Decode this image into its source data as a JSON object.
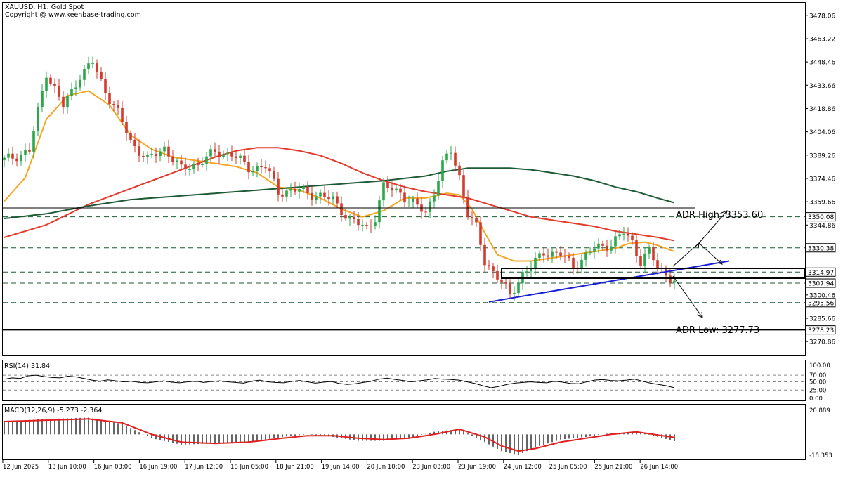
{
  "header": {
    "title": "XAUUSD, H1:  Gold Spot",
    "copyright": "Copyright @ www.keenbase-trading.com"
  },
  "colors": {
    "bull": "#2aa84a",
    "bear": "#d33a2c",
    "sma20": "#f5a623",
    "sma100": "#e23b2b",
    "sma200": "#1f5a37",
    "trendline": "#1a1fd6",
    "macd_line": "#e02020",
    "price_tag_bg": "#ffffff"
  },
  "chart_data": [
    {
      "type": "candlestick",
      "name": "price",
      "ylim": [
        3262,
        3486
      ],
      "y_ticks": [
        3478.06,
        3463.22,
        3448.46,
        3433.66,
        3418.86,
        3404.06,
        3389.26,
        3374.46,
        3359.66,
        3344.86,
        3330.06,
        3315.26,
        3300.46,
        3285.66,
        3270.86
      ],
      "y_tick_labels": [
        "3478.06",
        "3463.22",
        "3448.46",
        "3433.66",
        "3418.86",
        "3404.06",
        "3389.26",
        "3374.46",
        "3359.66",
        "3344.86",
        "3330.06",
        "3315.26",
        "3300.46",
        "3285.66",
        "3270.86"
      ],
      "x_tick_labels": [
        "12 Jun 2025",
        "13 Jun 10:00",
        "16 Jun 03:00",
        "16 Jun 19:00",
        "17 Jun 12:00",
        "18 Jun 05:00",
        "18 Jun 21:00",
        "19 Jun 14:00",
        "20 Jun 10:00",
        "23 Jun 03:00",
        "23 Jun 19:00",
        "24 Jun 12:00",
        "25 Jun 05:00",
        "25 Jun 21:00",
        "26 Jun 14:00"
      ],
      "bar_count": 160,
      "price_anchors": [
        [
          0,
          3386
        ],
        [
          6,
          3392
        ],
        [
          10,
          3442
        ],
        [
          14,
          3420
        ],
        [
          18,
          3440
        ],
        [
          21,
          3448
        ],
        [
          24,
          3430
        ],
        [
          27,
          3416
        ],
        [
          30,
          3398
        ],
        [
          34,
          3386
        ],
        [
          38,
          3394
        ],
        [
          42,
          3380
        ],
        [
          46,
          3384
        ],
        [
          50,
          3391
        ],
        [
          54,
          3390
        ],
        [
          58,
          3381
        ],
        [
          62,
          3382
        ],
        [
          65,
          3366
        ],
        [
          70,
          3367
        ],
        [
          74,
          3364
        ],
        [
          78,
          3361
        ],
        [
          82,
          3348
        ],
        [
          86,
          3343
        ],
        [
          88,
          3350
        ],
        [
          90,
          3369
        ],
        [
          94,
          3366
        ],
        [
          96,
          3360
        ],
        [
          100,
          3353
        ],
        [
          102,
          3366
        ],
        [
          104,
          3383
        ],
        [
          106,
          3392
        ],
        [
          108,
          3376
        ],
        [
          110,
          3352
        ],
        [
          112,
          3343
        ],
        [
          114,
          3322
        ],
        [
          117,
          3312
        ],
        [
          120,
          3300
        ],
        [
          123,
          3314
        ],
        [
          125,
          3318
        ],
        [
          128,
          3328
        ],
        [
          132,
          3326
        ],
        [
          135,
          3319
        ],
        [
          137,
          3323
        ],
        [
          140,
          3330
        ],
        [
          144,
          3333
        ],
        [
          147,
          3340
        ],
        [
          149,
          3334
        ],
        [
          151,
          3322
        ],
        [
          153,
          3328
        ],
        [
          155,
          3318
        ],
        [
          157,
          3314
        ],
        [
          159,
          3309
        ]
      ],
      "moving_averages": [
        {
          "period": 20,
          "color_key": "sma20",
          "points": [
            [
              0,
              3360
            ],
            [
              5,
              3375
            ],
            [
              10,
              3412
            ],
            [
              15,
              3427
            ],
            [
              20,
              3430
            ],
            [
              25,
              3421
            ],
            [
              30,
              3402
            ],
            [
              35,
              3393
            ],
            [
              40,
              3388
            ],
            [
              45,
              3386
            ],
            [
              50,
              3384
            ],
            [
              55,
              3382
            ],
            [
              60,
              3378
            ],
            [
              65,
              3369
            ],
            [
              70,
              3367
            ],
            [
              75,
              3362
            ],
            [
              80,
              3355
            ],
            [
              85,
              3350
            ],
            [
              90,
              3354
            ],
            [
              95,
              3362
            ],
            [
              100,
              3362
            ],
            [
              105,
              3365
            ],
            [
              108,
              3364
            ],
            [
              111,
              3355
            ],
            [
              114,
              3340
            ],
            [
              117,
              3326
            ],
            [
              121,
              3322
            ],
            [
              125,
              3322
            ],
            [
              130,
              3324
            ],
            [
              135,
              3326
            ],
            [
              140,
              3328
            ],
            [
              145,
              3330
            ],
            [
              148,
              3333
            ],
            [
              152,
              3334
            ],
            [
              155,
              3332
            ],
            [
              159,
              3328
            ]
          ]
        },
        {
          "period": 100,
          "color_key": "sma100",
          "points": [
            [
              0,
              3337
            ],
            [
              10,
              3345
            ],
            [
              20,
              3358
            ],
            [
              30,
              3368
            ],
            [
              40,
              3378
            ],
            [
              50,
              3388
            ],
            [
              55,
              3392
            ],
            [
              60,
              3394
            ],
            [
              65,
              3394
            ],
            [
              70,
              3392
            ],
            [
              75,
              3389
            ],
            [
              80,
              3384
            ],
            [
              85,
              3378
            ],
            [
              90,
              3373
            ],
            [
              95,
              3369
            ],
            [
              100,
              3366
            ],
            [
              105,
              3364
            ],
            [
              110,
              3362
            ],
            [
              115,
              3358
            ],
            [
              120,
              3354
            ],
            [
              125,
              3350
            ],
            [
              130,
              3348
            ],
            [
              135,
              3346
            ],
            [
              140,
              3344
            ],
            [
              145,
              3341
            ],
            [
              150,
              3339
            ],
            [
              155,
              3337
            ],
            [
              159,
              3335
            ]
          ]
        },
        {
          "period": 200,
          "color_key": "sma200",
          "points": [
            [
              0,
              3349
            ],
            [
              10,
              3352
            ],
            [
              20,
              3357
            ],
            [
              30,
              3361
            ],
            [
              40,
              3363
            ],
            [
              50,
              3365
            ],
            [
              60,
              3367
            ],
            [
              65,
              3368
            ],
            [
              70,
              3369
            ],
            [
              80,
              3371
            ],
            [
              90,
              3373
            ],
            [
              100,
              3376
            ],
            [
              105,
              3379
            ],
            [
              110,
              3381
            ],
            [
              115,
              3381
            ],
            [
              120,
              3381
            ],
            [
              125,
              3380
            ],
            [
              130,
              3378
            ],
            [
              135,
              3376
            ],
            [
              140,
              3373
            ],
            [
              145,
              3369
            ],
            [
              150,
              3366
            ],
            [
              155,
              3362
            ],
            [
              159,
              3359
            ]
          ]
        }
      ],
      "trendline": {
        "start": [
          115,
          3296
        ],
        "end": [
          172,
          3322
        ]
      },
      "horizontal_levels": [
        {
          "value": 3350.08,
          "style": "dashed",
          "color": "#1f5a37",
          "tag": "3350.08"
        },
        {
          "value": 3330.38,
          "style": "dashed",
          "color": "#1f5a37",
          "tag": "3330.38"
        },
        {
          "value": 3314.97,
          "style": "dashed",
          "color": "#1f5a37",
          "tag": "3314.97"
        },
        {
          "value": 3307.94,
          "style": "dashed",
          "color": "#1f5a37",
          "tag": "3307.94"
        },
        {
          "value": 3295.56,
          "style": "dashed",
          "color": "#1f5a37",
          "tag": "3295.56"
        },
        {
          "value": 3278.23,
          "style": "solid",
          "color": "#000000",
          "tag": "3278.23"
        }
      ],
      "annotations": {
        "adr_high": "ADR High: 3353.60",
        "adr_low": "ADR Low: 3277.73"
      }
    },
    {
      "type": "line",
      "name": "RSI(14)",
      "label": "RSI(14) 31.84",
      "ylim": [
        0,
        100
      ],
      "y_tick_labels": [
        "100.00",
        "70.00",
        "50.00",
        "25.00",
        "0.00"
      ],
      "levels": [
        70,
        50,
        25
      ],
      "values": [
        58,
        62,
        60,
        68,
        70,
        66,
        63,
        62,
        67,
        65,
        60,
        55,
        52,
        56,
        53,
        50,
        52,
        48,
        47,
        50,
        53,
        49,
        47,
        50,
        52,
        48,
        51,
        53,
        50,
        48,
        46,
        52,
        55,
        50,
        48,
        47,
        51,
        54,
        50,
        46,
        49,
        51,
        45,
        42,
        44,
        48,
        52,
        58,
        61,
        57,
        54,
        50,
        53,
        56,
        60,
        58,
        57,
        55,
        50,
        45,
        38,
        32,
        36,
        42,
        46,
        48,
        50,
        48,
        47,
        52,
        49,
        45,
        44,
        50,
        55,
        57,
        54,
        53,
        55,
        58,
        52,
        46,
        42,
        38,
        31.84
      ]
    },
    {
      "type": "bar+line",
      "name": "MACD(12,26,9)",
      "label": "MACD(12,26,9) -5.273 -2.364",
      "ylim": [
        -18.353,
        20.889
      ],
      "y_tick_labels": [
        "20.889",
        "-18.353"
      ],
      "histogram_anchors": [
        [
          0,
          10
        ],
        [
          10,
          12
        ],
        [
          20,
          13
        ],
        [
          28,
          8
        ],
        [
          35,
          -3
        ],
        [
          42,
          -8
        ],
        [
          50,
          -7
        ],
        [
          58,
          -6
        ],
        [
          66,
          -2
        ],
        [
          72,
          0
        ],
        [
          78,
          -2
        ],
        [
          84,
          -5
        ],
        [
          90,
          -5
        ],
        [
          96,
          -3
        ],
        [
          102,
          2
        ],
        [
          108,
          4
        ],
        [
          114,
          -6
        ],
        [
          118,
          -13
        ],
        [
          122,
          -16
        ],
        [
          126,
          -10
        ],
        [
          132,
          -4
        ],
        [
          138,
          -2
        ],
        [
          144,
          1
        ],
        [
          150,
          2
        ],
        [
          154,
          -1
        ],
        [
          159,
          -5.273
        ]
      ],
      "signal_anchors": [
        [
          0,
          10
        ],
        [
          10,
          11
        ],
        [
          20,
          12
        ],
        [
          28,
          9
        ],
        [
          35,
          0
        ],
        [
          42,
          -6
        ],
        [
          50,
          -7
        ],
        [
          58,
          -6
        ],
        [
          66,
          -3
        ],
        [
          72,
          -1
        ],
        [
          78,
          -1
        ],
        [
          84,
          -3
        ],
        [
          90,
          -4
        ],
        [
          96,
          -3
        ],
        [
          102,
          0
        ],
        [
          108,
          4
        ],
        [
          114,
          -2
        ],
        [
          118,
          -9
        ],
        [
          122,
          -13
        ],
        [
          126,
          -11
        ],
        [
          132,
          -6
        ],
        [
          138,
          -3
        ],
        [
          144,
          0
        ],
        [
          150,
          2
        ],
        [
          154,
          0
        ],
        [
          159,
          -2.364
        ]
      ]
    }
  ]
}
